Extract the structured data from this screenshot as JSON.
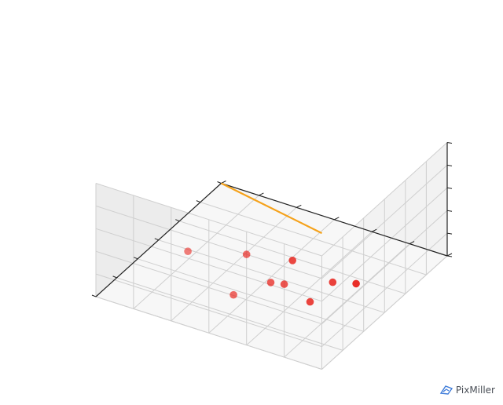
{
  "chart_data": {
    "type": "scatter3d",
    "title": "",
    "xlabel": "",
    "ylabel": "",
    "zlabel": "",
    "grid": true,
    "tick_labels_visible": false,
    "xlim": [
      0,
      6
    ],
    "ylim": [
      0,
      6
    ],
    "zlim": [
      0,
      5
    ],
    "x_ticks": [
      0,
      1,
      2,
      3,
      4,
      5,
      6
    ],
    "y_ticks": [
      0,
      1,
      2,
      3,
      4,
      5,
      6
    ],
    "z_ticks": [
      0,
      1,
      2,
      3,
      4,
      5
    ],
    "points": {
      "color": "#e8231c",
      "data": [
        {
          "x": 0.0,
          "y": 2.0,
          "z": 4.0
        },
        {
          "x": 0.7,
          "y": 0.1,
          "z": 3.2
        },
        {
          "x": 0.8,
          "y": 1.8,
          "z": 2.2
        },
        {
          "x": 0.9,
          "y": 1.5,
          "z": 2.2
        },
        {
          "x": 2.0,
          "y": 0.2,
          "z": 2.0
        },
        {
          "x": 0.8,
          "y": 4.0,
          "z": 2.4
        },
        {
          "x": 2.2,
          "y": 2.0,
          "z": 1.9
        },
        {
          "x": 1.0,
          "y": 2.9,
          "z": 0.9
        },
        {
          "x": 1.6,
          "y": 1.2,
          "z": 1.0
        }
      ]
    },
    "fit_line": {
      "color": "#f5a21b",
      "start": {
        "x": 0.0,
        "y": 0.0,
        "z": 6.0
      },
      "end": {
        "x": 6.0,
        "y": 6.0,
        "z": 0.0
      }
    }
  },
  "watermark": {
    "text": "PixMiller",
    "icon": "pixmiller-logo-icon",
    "color": "#4a4f57",
    "icon_color": "#3d7bd9"
  }
}
